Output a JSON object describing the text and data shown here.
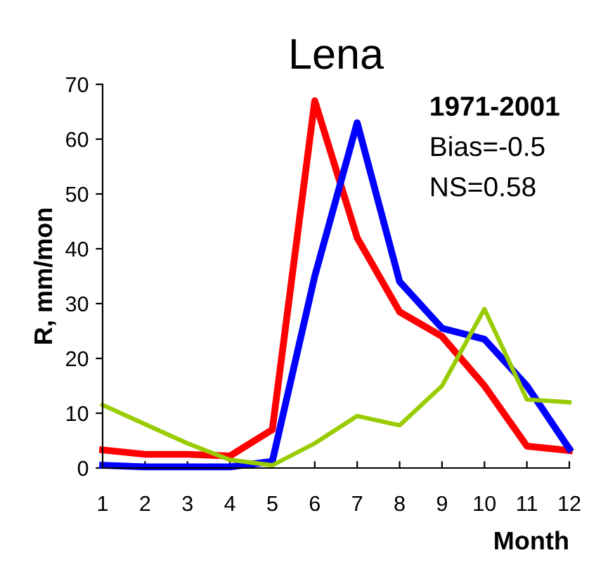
{
  "chart_data": {
    "type": "line",
    "title": "Lena",
    "xlabel": "Month",
    "ylabel": "R, mm/mon",
    "x": [
      1,
      2,
      3,
      4,
      5,
      6,
      7,
      8,
      9,
      10,
      11,
      12
    ],
    "series": [
      {
        "color": "#ff0000",
        "values": [
          3.3,
          2.5,
          2.5,
          2.2,
          7,
          67,
          42,
          28.5,
          24,
          15,
          4,
          3.2
        ]
      },
      {
        "color": "#0000ff",
        "values": [
          0.5,
          0.2,
          0.2,
          0.2,
          1.2,
          35,
          63,
          34,
          25.5,
          23.5,
          15,
          3.5
        ]
      },
      {
        "color": "#99cc00",
        "values": [
          11.5,
          8,
          4.5,
          1.5,
          0.5,
          4.5,
          9.5,
          7.8,
          15,
          29,
          12.5,
          12
        ]
      }
    ],
    "xlim": [
      1,
      12
    ],
    "xticks": [
      1,
      2,
      3,
      4,
      5,
      6,
      7,
      8,
      9,
      10,
      11,
      12
    ],
    "ylim": [
      0,
      70
    ],
    "yticks": [
      0,
      10,
      20,
      30,
      40,
      50,
      60,
      70
    ],
    "grid": false,
    "legend": false,
    "marker": "none",
    "line_style": "solid",
    "annotations": [
      "1971-2001",
      "Bias=-0.5",
      "NS=0.58"
    ]
  }
}
